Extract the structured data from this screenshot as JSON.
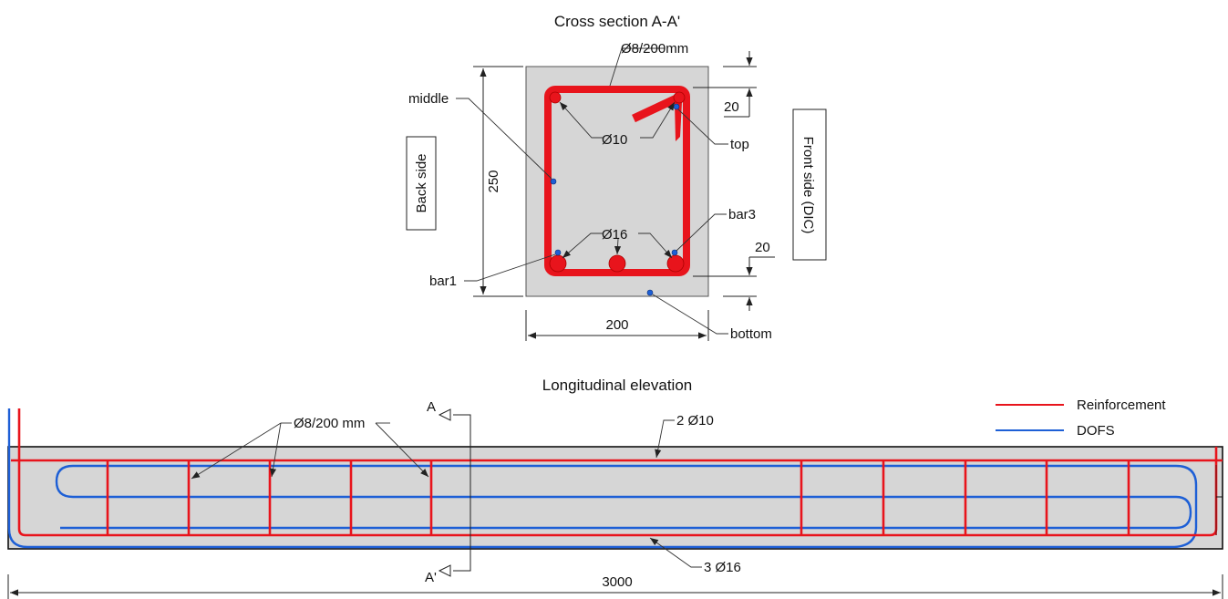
{
  "cross_section": {
    "title": "Cross section A-A'",
    "stirrup_label": "Ø8/200mm",
    "top_bars_label": "Ø10",
    "bottom_bars_label": "Ø16",
    "dim_top_cover": "20",
    "dim_bottom_cover": "20",
    "dim_height": "250",
    "dim_width": "200",
    "sensor_labels": {
      "middle": "middle",
      "top": "top",
      "bar1": "bar1",
      "bar3": "bar3",
      "bottom": "bottom"
    },
    "back_side_label": "Back side",
    "front_side_label": "Front side (DIC)"
  },
  "elevation": {
    "title": "Longitudinal elevation",
    "stirrup_label": "Ø8/200 mm",
    "top_rebar_label": "2 Ø10",
    "bottom_rebar_label": "3 Ø16",
    "section_mark_top": "A",
    "section_mark_bottom": "A'",
    "length_label": "3000"
  },
  "legend": {
    "items": [
      {
        "label": "Reinforcement",
        "color": "#e8141c"
      },
      {
        "label": "DOFS",
        "color": "#1d5fd6"
      }
    ]
  },
  "colors": {
    "concrete": "#d6d6d6",
    "reinforcement": "#e8141c",
    "fiber": "#1d5fd6"
  }
}
